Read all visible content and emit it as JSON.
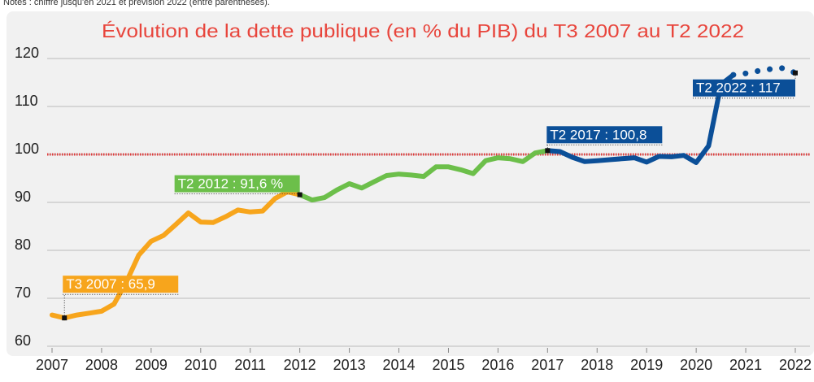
{
  "chart_data": {
    "type": "line",
    "note": "Notes : chiffre jusqu'en 2021 et prévision 2022 (entre parenthèses).",
    "title": "Évolution de la dette publique (en % du PIB) du T3 2007 au T2 2022",
    "xlim": [
      2007,
      2022
    ],
    "xticks": [
      2007,
      2008,
      2009,
      2010,
      2011,
      2012,
      2013,
      2014,
      2015,
      2016,
      2017,
      2018,
      2019,
      2020,
      2021,
      2022
    ],
    "ylim": [
      60,
      120
    ],
    "yticks": [
      60,
      70,
      80,
      90,
      100,
      110,
      120
    ],
    "grid": true,
    "reference_line": {
      "value": 100,
      "color": "#e03a3a"
    },
    "series": [
      {
        "color": "#f7a51c",
        "style": "solid",
        "x": [
          2007.0,
          2007.25,
          2007.5,
          2007.75,
          2008.0,
          2008.25,
          2008.5,
          2008.75,
          2009.0,
          2009.25,
          2009.5,
          2009.75,
          2010.0,
          2010.25,
          2010.5,
          2010.75,
          2011.0,
          2011.25,
          2011.5,
          2011.75,
          2012.0
        ],
        "values": [
          66.5,
          65.9,
          66.5,
          66.9,
          67.3,
          68.8,
          73.4,
          79.0,
          81.9,
          83.1,
          85.4,
          87.8,
          85.9,
          85.8,
          87.0,
          88.4,
          88.0,
          88.2,
          90.8,
          92.2,
          91.6
        ]
      },
      {
        "color": "#6cbf4a",
        "style": "solid",
        "x": [
          2012.0,
          2012.25,
          2012.5,
          2012.75,
          2013.0,
          2013.25,
          2013.5,
          2013.75,
          2014.0,
          2014.25,
          2014.5,
          2014.75,
          2015.0,
          2015.25,
          2015.5,
          2015.75,
          2016.0,
          2016.25,
          2016.5,
          2016.75,
          2017.0
        ],
        "values": [
          91.6,
          90.5,
          91.0,
          92.6,
          93.9,
          93.0,
          94.3,
          95.6,
          95.9,
          95.7,
          95.4,
          97.4,
          97.4,
          96.8,
          96.0,
          98.7,
          99.3,
          99.1,
          98.5,
          100.3,
          100.8
        ]
      },
      {
        "color": "#0b4f98",
        "style": "solid",
        "x": [
          2017.0,
          2017.25,
          2017.5,
          2017.75,
          2018.0,
          2018.25,
          2018.5,
          2018.75,
          2019.0,
          2019.25,
          2019.5,
          2019.75,
          2020.0,
          2020.25,
          2020.5,
          2020.75
        ],
        "values": [
          100.8,
          100.6,
          99.4,
          98.5,
          98.7,
          98.9,
          99.1,
          99.3,
          98.4,
          99.6,
          99.5,
          99.8,
          98.3,
          101.8,
          114.6,
          116.6
        ]
      },
      {
        "color": "#0b4f98",
        "style": "dotted",
        "x": [
          2020.75,
          2021.0,
          2021.25,
          2021.5,
          2021.75,
          2022.0
        ],
        "values": [
          116.6,
          116.9,
          117.4,
          117.8,
          118.0,
          117.0
        ]
      }
    ],
    "annotations": [
      {
        "text": "T3 2007 : 65,9",
        "x": 2007.25,
        "y": 65.9,
        "color": "#f7a51c"
      },
      {
        "text": "T2 2012 : 91,6 %",
        "x": 2012.0,
        "y": 91.6,
        "color": "#6cbf4a"
      },
      {
        "text": "T2 2017 : 100,8",
        "x": 2017.0,
        "y": 100.8,
        "color": "#0b4f98"
      },
      {
        "text": "T2 2022 : 117",
        "x": 2022.0,
        "y": 117,
        "color": "#0b4f98"
      }
    ]
  }
}
